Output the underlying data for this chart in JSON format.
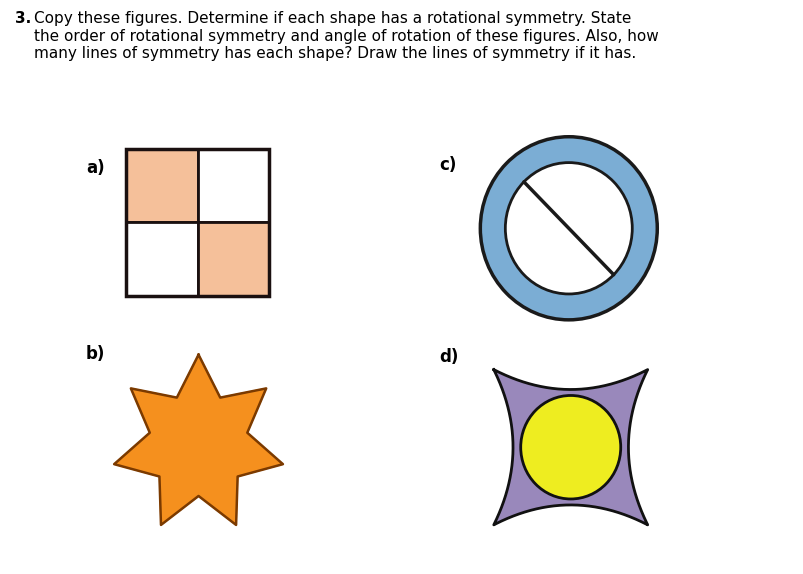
{
  "bg_color": "#ffffff",
  "title_num": "3.",
  "title_text": "Copy these figures. Determine if each shape has a rotational symmetry. State\nthe order of rotational symmetry and angle of rotation of these figures. Also, how\nmany lines of symmetry has each shape? Draw the lines of symmetry if it has.",
  "label_a": "a)",
  "label_b": "b)",
  "label_c": "c)",
  "label_d": "d)",
  "square_fill": "#F5C09A",
  "square_edge": "#1a1010",
  "star_fill": "#F5901E",
  "star_edge": "#7B3A00",
  "circle_fill": "#7BADD4",
  "circle_edge": "#1a1a1a",
  "rect_fill": "#9988BB",
  "rect_edge": "#111111",
  "oval_fill": "#EEED20",
  "oval_edge": "#111111"
}
